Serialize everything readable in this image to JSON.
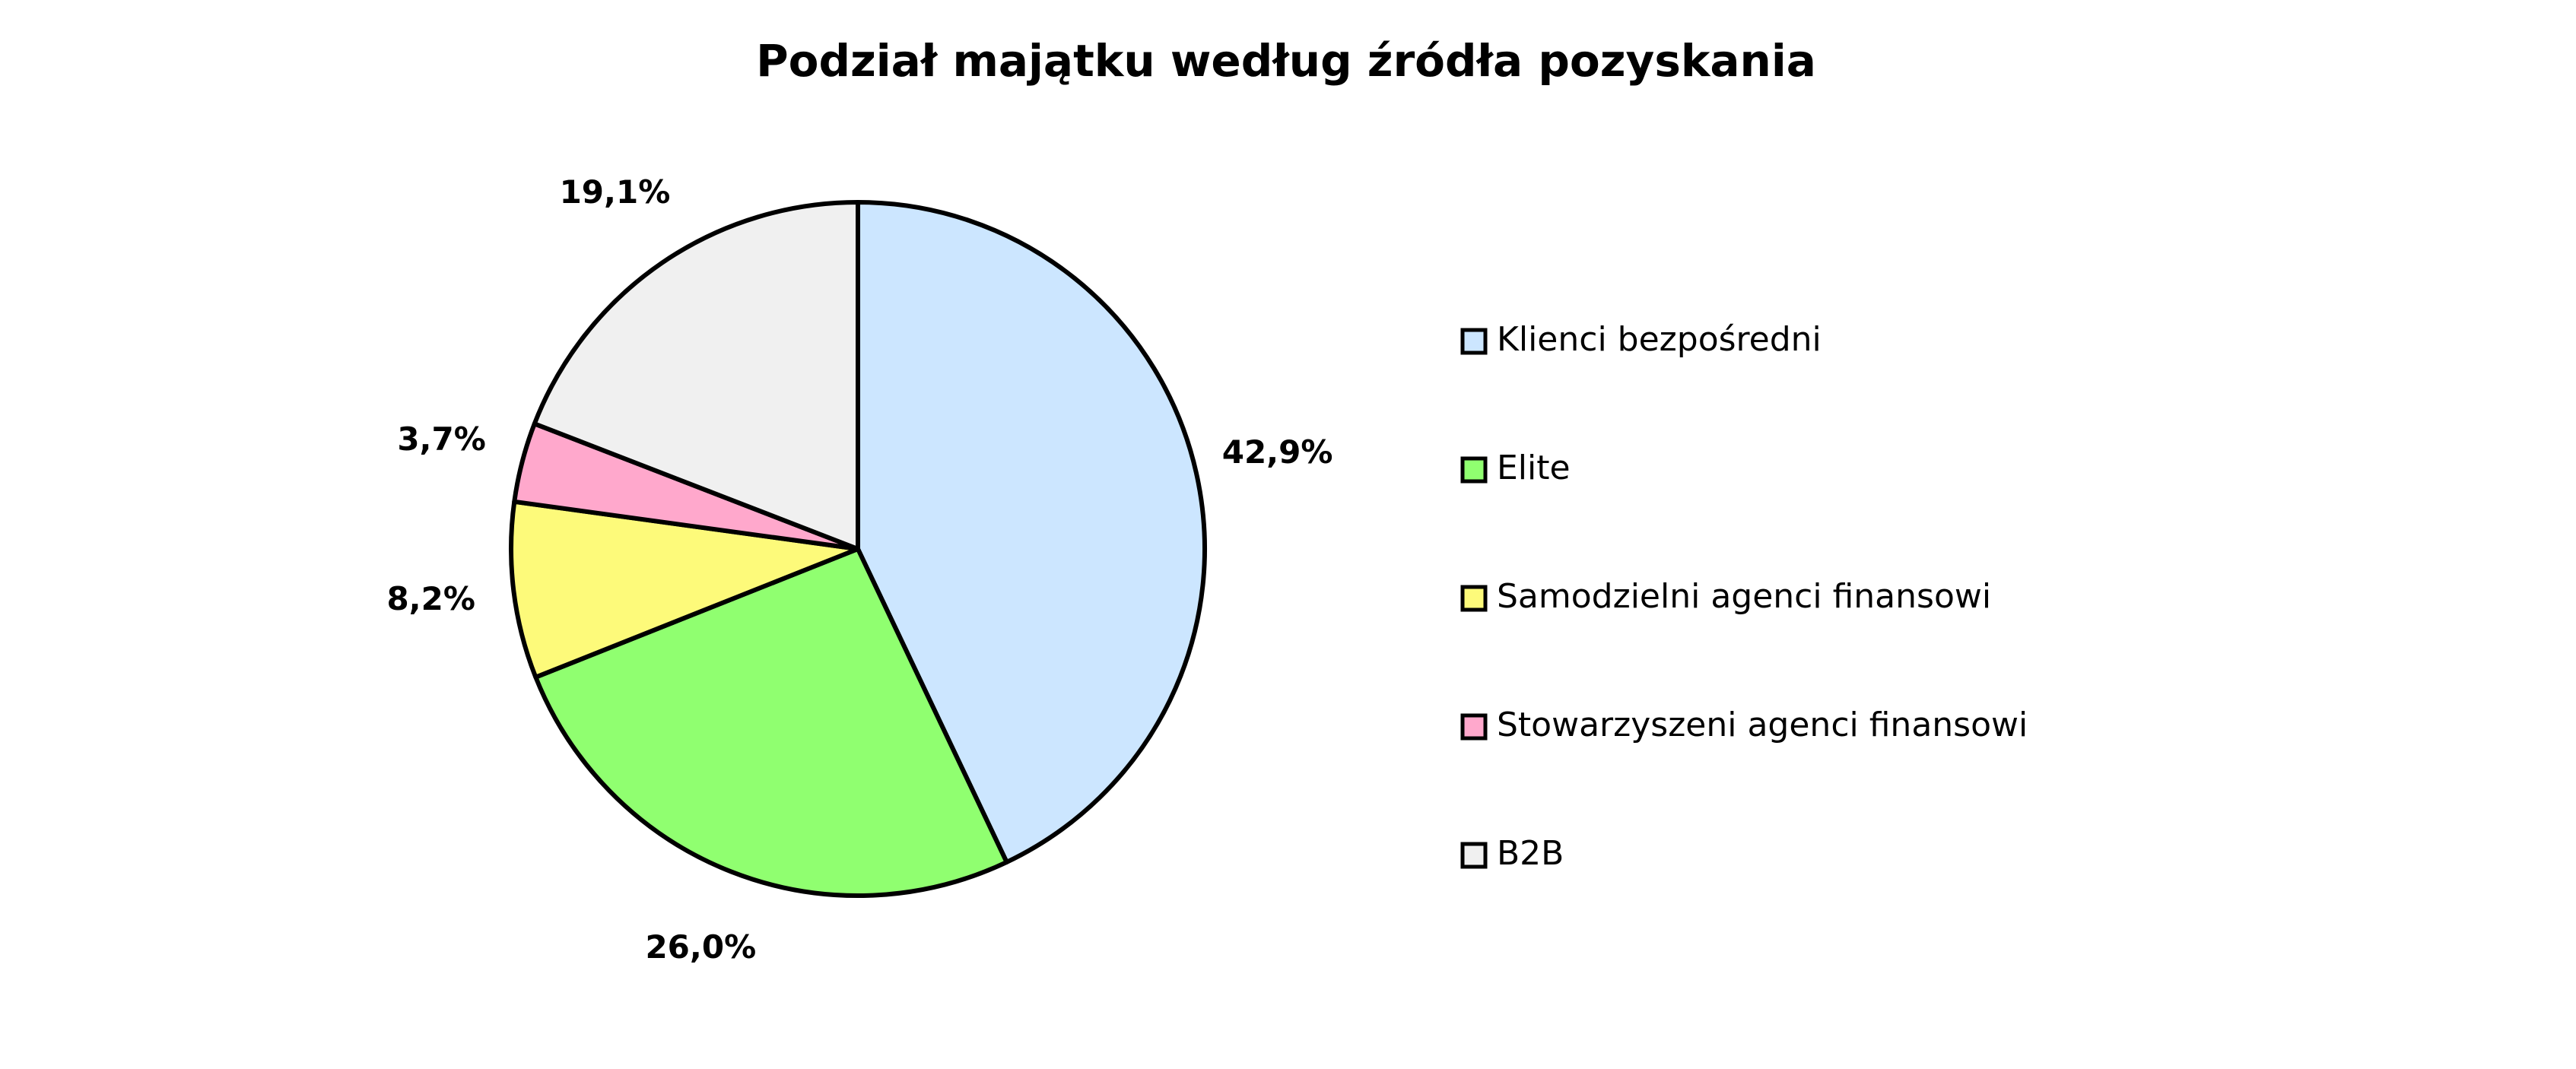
{
  "chart_data": {
    "type": "pie",
    "title": "Podział majątku według źródła pozyskania",
    "categories": [
      "Klienci bezpośredni",
      "Elite",
      "Samodzielni agenci finansowi",
      "Stowarzyszeni agenci finansowi",
      "B2B"
    ],
    "values": [
      42.9,
      26.0,
      8.2,
      3.7,
      19.1
    ],
    "value_labels": [
      "42,9%",
      "26,0%",
      "8,2%",
      "3,7%",
      "19,1%"
    ],
    "colors": [
      "#cce6ff",
      "#90ff70",
      "#fdfa7a",
      "#ffa8cc",
      "#f0f0f0"
    ],
    "legend": "right"
  }
}
